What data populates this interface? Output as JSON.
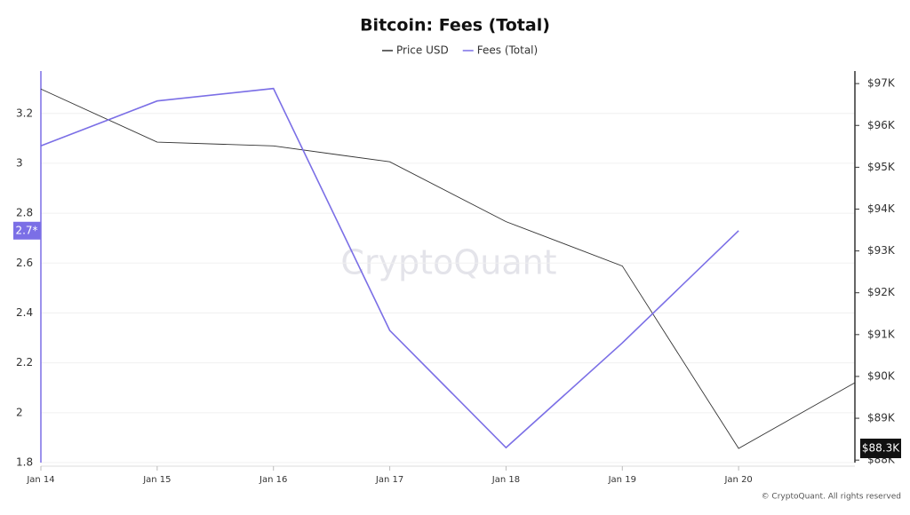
{
  "chart_data": {
    "type": "line",
    "title": "Bitcoin: Fees (Total)",
    "categories": [
      "Jan 14",
      "Jan 15",
      "Jan 16",
      "Jan 17",
      "Jan 18",
      "Jan 19",
      "Jan 20",
      null
    ],
    "series": [
      {
        "name": "Price USD",
        "color": "#333333",
        "axis": "y2",
        "values": [
          96870,
          95600,
          95510,
          95130,
          93700,
          92640,
          88280,
          89850
        ],
        "value_labels": [
          null,
          null,
          null,
          null,
          null,
          null,
          "$88.3K",
          null
        ]
      },
      {
        "name": "Fees (Total)",
        "color": "#7b6fe6",
        "values": [
          3.07,
          3.25,
          3.3,
          2.33,
          1.86,
          2.28,
          2.73,
          null
        ],
        "value_labels": [
          null,
          null,
          null,
          null,
          null,
          null,
          "2.7*",
          null
        ]
      }
    ],
    "ylim": [
      1.8,
      3.37
    ],
    "yticks": [
      1.8,
      2,
      2.2,
      2.4,
      2.6,
      2.8,
      3,
      3.2
    ],
    "y2lim": [
      87940,
      97300
    ],
    "y2ticks": [
      {
        "value": 88000,
        "label": "$88K"
      },
      {
        "value": 89000,
        "label": "$89K"
      },
      {
        "value": 90000,
        "label": "$90K"
      },
      {
        "value": 91000,
        "label": "$91K"
      },
      {
        "value": 92000,
        "label": "$92K"
      },
      {
        "value": 93000,
        "label": "$93K"
      },
      {
        "value": 94000,
        "label": "$94K"
      },
      {
        "value": 95000,
        "label": "$95K"
      },
      {
        "value": 96000,
        "label": "$96K"
      },
      {
        "value": 97000,
        "label": "$97K"
      }
    ],
    "grid": true,
    "legend": "top",
    "watermark": "CryptoQuant",
    "source": "© CryptoQuant. All rights reserved"
  }
}
